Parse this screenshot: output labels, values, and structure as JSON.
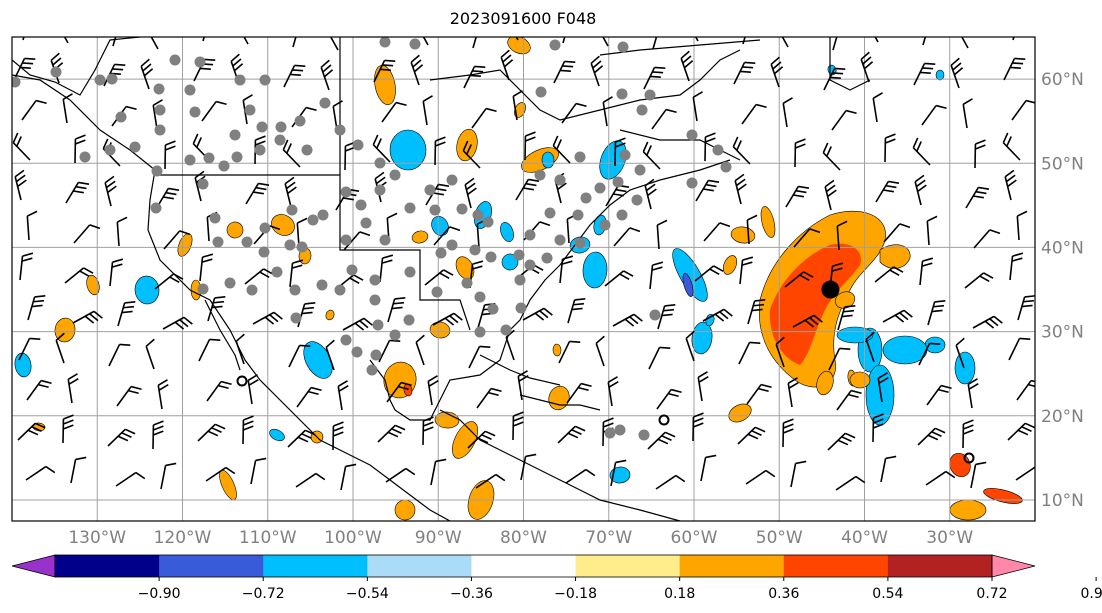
{
  "title": "2023091600 F048",
  "map": {
    "lon_range": [
      -140,
      -20
    ],
    "lat_range": [
      7.5,
      65
    ],
    "gridline_color": "#a0a0a0",
    "coastline_color": "#000000",
    "lat_ticks": [
      {
        "value": 60,
        "label": "60°N"
      },
      {
        "value": 50,
        "label": "50°N"
      },
      {
        "value": 40,
        "label": "40°N"
      },
      {
        "value": 30,
        "label": "30°N"
      },
      {
        "value": 20,
        "label": "20°N"
      },
      {
        "value": 10,
        "label": "10°N"
      }
    ],
    "lon_ticks": [
      {
        "value": -130,
        "label": "130°W"
      },
      {
        "value": -120,
        "label": "120°W"
      },
      {
        "value": -110,
        "label": "110°W"
      },
      {
        "value": -100,
        "label": "100°W"
      },
      {
        "value": -90,
        "label": "90°W"
      },
      {
        "value": -80,
        "label": "80°W"
      },
      {
        "value": -70,
        "label": "70°W"
      },
      {
        "value": -60,
        "label": "60°W"
      },
      {
        "value": -50,
        "label": "50°W"
      },
      {
        "value": -40,
        "label": "40°W"
      },
      {
        "value": -30,
        "label": "30°W"
      }
    ],
    "storm_marker": {
      "lon": -44,
      "lat": 35,
      "color": "#000000"
    },
    "tick_label_color": "#808080"
  },
  "colorbar": {
    "colors": [
      "#9932cc",
      "#00008b",
      "#3a5bd9",
      "#00bfff",
      "#aadcf7",
      "#ffffff",
      "#ffec8b",
      "#ffa500",
      "#ff4500",
      "#b22222",
      "#ff88aa"
    ],
    "tick_labels": [
      "−0.90",
      "−0.72",
      "−0.54",
      "−0.36",
      "−0.18",
      "0.18",
      "0.36",
      "0.54",
      "0.72",
      "0.90"
    ]
  }
}
